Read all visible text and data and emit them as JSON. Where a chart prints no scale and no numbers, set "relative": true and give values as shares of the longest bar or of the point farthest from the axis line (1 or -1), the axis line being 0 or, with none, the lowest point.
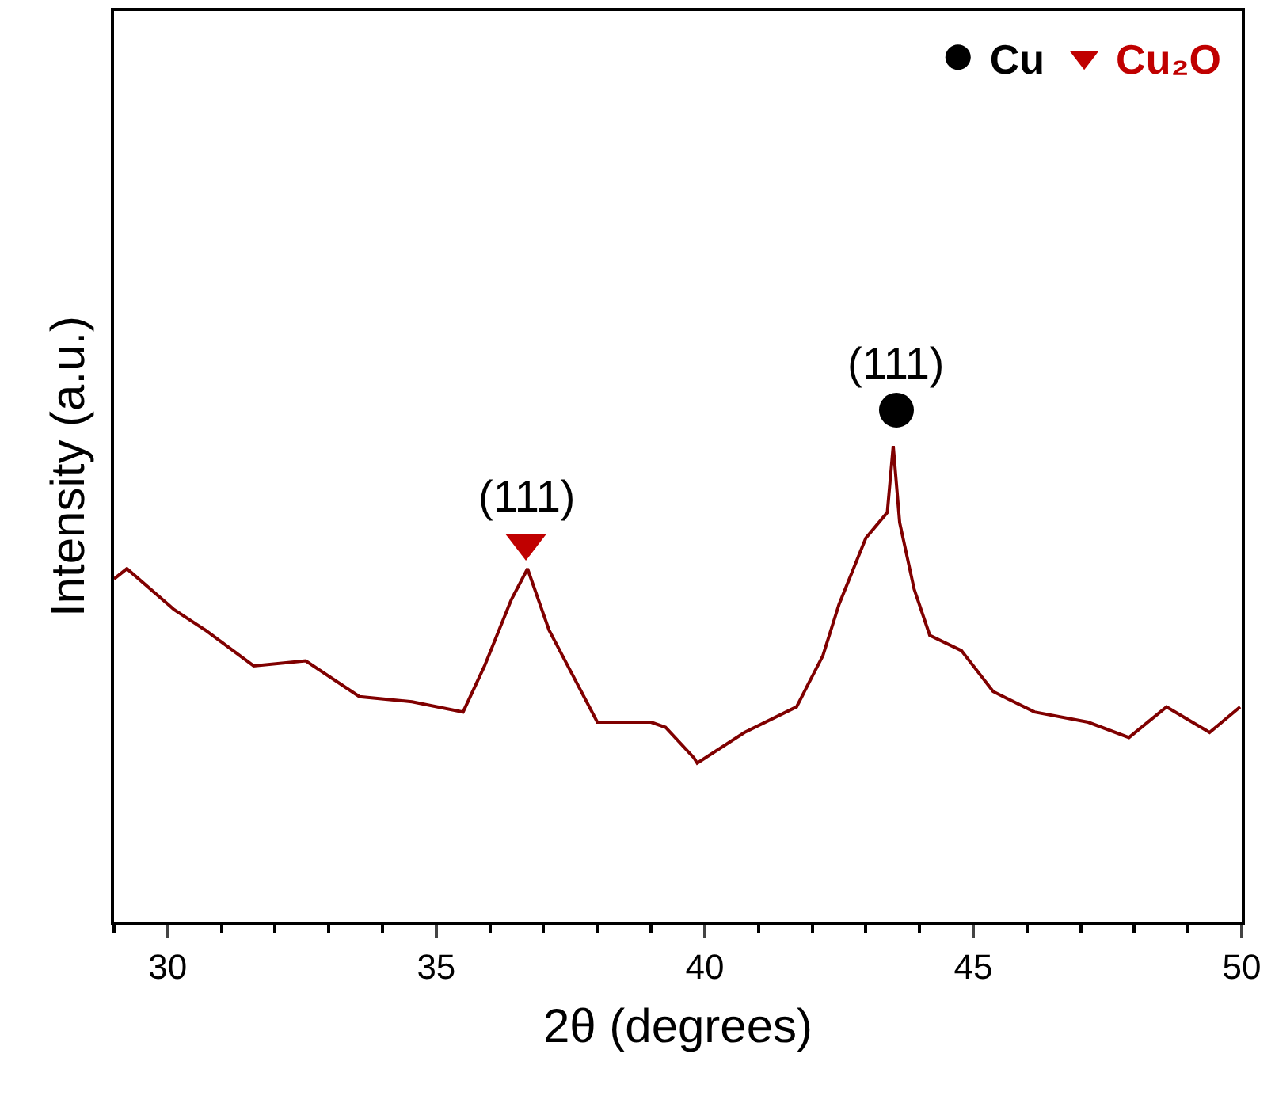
{
  "chart_data": {
    "type": "line",
    "xlabel": "2θ (degrees)",
    "ylabel": "Intensity (a.u.)",
    "relative": true,
    "xlim": [
      29,
      50
    ],
    "xticks": [
      30,
      35,
      40,
      45,
      50
    ],
    "legend": "top right",
    "series": [
      {
        "color": "#800000",
        "x": [
          29.0,
          29.24,
          30.12,
          30.7,
          31.6,
          32.57,
          33.57,
          34.55,
          35.5,
          35.9,
          36.4,
          36.7,
          37.1,
          37.5,
          38.0,
          39.0,
          39.27,
          39.8,
          39.86,
          40.74,
          41.71,
          42.2,
          42.5,
          43.0,
          43.4,
          43.51,
          43.63,
          43.9,
          44.19,
          44.78,
          45.37,
          46.14,
          47.14,
          47.9,
          48.6,
          49.4,
          49.97
        ],
        "values": [
          0.67,
          0.69,
          0.61,
          0.57,
          0.5,
          0.51,
          0.44,
          0.43,
          0.41,
          0.5,
          0.63,
          0.69,
          0.57,
          0.49,
          0.39,
          0.39,
          0.38,
          0.32,
          0.31,
          0.37,
          0.42,
          0.52,
          0.62,
          0.75,
          0.8,
          0.93,
          0.78,
          0.65,
          0.56,
          0.53,
          0.45,
          0.41,
          0.39,
          0.36,
          0.42,
          0.37,
          0.42
        ]
      },
      {
        "type": "scatter",
        "name": "Cu",
        "color": "#000000",
        "marker": "circle",
        "x": [
          43.57
        ],
        "values": [
          1
        ]
      },
      {
        "type": "scatter",
        "name": "Cu₂O",
        "color": "#c00000",
        "marker": "triangle",
        "x": [
          36.67
        ],
        "values": [
          0.74
        ]
      }
    ],
    "annotations": [
      {
        "text": "(111)",
        "x": 36.67,
        "y": 0.74
      },
      {
        "text": "(111)",
        "x": 43.57,
        "y": 1
      }
    ]
  }
}
